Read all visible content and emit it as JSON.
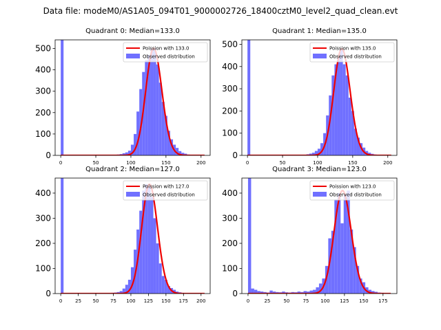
{
  "figure": {
    "title": "Data file: modeM0/AS1A05_094T01_9000002726_18400cztM0_level2_quad_clean.evt"
  },
  "colors": {
    "hist": "#7070ff",
    "fit": "#ee0000",
    "axis": "#000000"
  },
  "chart_data": [
    {
      "type": "bar",
      "title": "Quadrant 0: Median=133.0",
      "xlim": [
        -8,
        213
      ],
      "ylim": [
        0,
        540
      ],
      "xticks": [
        0,
        50,
        100,
        150,
        200
      ],
      "yticks": [
        0,
        100,
        200,
        300,
        400,
        500
      ],
      "bin_width": 4,
      "bins": [
        [
          0,
          540
        ],
        [
          72,
          2
        ],
        [
          76,
          3
        ],
        [
          80,
          4
        ],
        [
          84,
          6
        ],
        [
          88,
          10
        ],
        [
          92,
          14
        ],
        [
          96,
          22
        ],
        [
          100,
          50
        ],
        [
          104,
          100
        ],
        [
          108,
          205
        ],
        [
          112,
          310
        ],
        [
          116,
          390
        ],
        [
          120,
          445
        ],
        [
          124,
          470
        ],
        [
          128,
          500
        ],
        [
          132,
          500
        ],
        [
          136,
          425
        ],
        [
          140,
          340
        ],
        [
          144,
          250
        ],
        [
          148,
          185
        ],
        [
          152,
          115
        ],
        [
          156,
          75
        ],
        [
          160,
          50
        ],
        [
          164,
          35
        ],
        [
          168,
          20
        ],
        [
          172,
          12
        ],
        [
          176,
          8
        ],
        [
          180,
          4
        ],
        [
          184,
          3
        ],
        [
          188,
          2
        ]
      ],
      "fit_mean": 133.0,
      "legend": [
        "Poission with 133.0",
        "Observed distribution"
      ]
    },
    {
      "type": "bar",
      "title": "Quadrant 1: Median=135.0",
      "xlim": [
        -8,
        213
      ],
      "ylim": [
        0,
        520
      ],
      "xticks": [
        0,
        50,
        100,
        150,
        200
      ],
      "yticks": [
        0,
        100,
        200,
        300,
        400,
        500
      ],
      "bin_width": 4,
      "bins": [
        [
          0,
          520
        ],
        [
          80,
          3
        ],
        [
          84,
          5
        ],
        [
          88,
          8
        ],
        [
          92,
          12
        ],
        [
          96,
          20
        ],
        [
          100,
          30
        ],
        [
          104,
          55
        ],
        [
          108,
          100
        ],
        [
          112,
          180
        ],
        [
          116,
          270
        ],
        [
          120,
          360
        ],
        [
          124,
          410
        ],
        [
          128,
          440
        ],
        [
          132,
          480
        ],
        [
          136,
          410
        ],
        [
          140,
          360
        ],
        [
          144,
          260
        ],
        [
          148,
          200
        ],
        [
          152,
          120
        ],
        [
          156,
          80
        ],
        [
          160,
          55
        ],
        [
          164,
          35
        ],
        [
          168,
          20
        ],
        [
          172,
          12
        ],
        [
          176,
          7
        ],
        [
          180,
          4
        ]
      ],
      "fit_mean": 135.0,
      "legend": [
        "Poission with 135.0",
        "Observed distribution"
      ]
    },
    {
      "type": "bar",
      "title": "Quadrant 2: Median=127.0",
      "xlim": [
        -8,
        213
      ],
      "ylim": [
        0,
        460
      ],
      "xticks": [
        0,
        25,
        50,
        75,
        100,
        125,
        150,
        175,
        200
      ],
      "yticks": [
        0,
        100,
        200,
        300,
        400
      ],
      "bin_width": 4,
      "bins": [
        [
          0,
          460
        ],
        [
          68,
          2
        ],
        [
          72,
          3
        ],
        [
          76,
          4
        ],
        [
          80,
          6
        ],
        [
          84,
          10
        ],
        [
          88,
          20
        ],
        [
          92,
          35
        ],
        [
          96,
          55
        ],
        [
          100,
          105
        ],
        [
          104,
          175
        ],
        [
          108,
          255
        ],
        [
          112,
          330
        ],
        [
          116,
          410
        ],
        [
          120,
          435
        ],
        [
          124,
          425
        ],
        [
          128,
          385
        ],
        [
          132,
          300
        ],
        [
          136,
          200
        ],
        [
          140,
          120
        ],
        [
          144,
          70
        ],
        [
          148,
          55
        ],
        [
          152,
          30
        ],
        [
          156,
          22
        ],
        [
          160,
          15
        ],
        [
          164,
          8
        ],
        [
          168,
          5
        ],
        [
          172,
          3
        ]
      ],
      "fit_mean": 127.0,
      "legend": [
        "Poission with 127.0",
        "Observed distribution"
      ]
    },
    {
      "type": "bar",
      "title": "Quadrant 3: Median=123.0",
      "xlim": [
        -8,
        193
      ],
      "ylim": [
        0,
        460
      ],
      "xticks": [
        0,
        25,
        50,
        75,
        100,
        125,
        150,
        175
      ],
      "yticks": [
        0,
        100,
        200,
        300,
        400
      ],
      "bin_width": 4,
      "bins": [
        [
          0,
          460
        ],
        [
          4,
          20
        ],
        [
          8,
          15
        ],
        [
          12,
          10
        ],
        [
          16,
          8
        ],
        [
          20,
          6
        ],
        [
          24,
          4
        ],
        [
          28,
          12
        ],
        [
          32,
          8
        ],
        [
          36,
          6
        ],
        [
          40,
          5
        ],
        [
          44,
          8
        ],
        [
          48,
          5
        ],
        [
          52,
          4
        ],
        [
          56,
          6
        ],
        [
          60,
          5
        ],
        [
          64,
          8
        ],
        [
          68,
          6
        ],
        [
          72,
          10
        ],
        [
          76,
          8
        ],
        [
          80,
          12
        ],
        [
          84,
          15
        ],
        [
          88,
          25
        ],
        [
          92,
          40
        ],
        [
          96,
          60
        ],
        [
          100,
          110
        ],
        [
          104,
          220
        ],
        [
          108,
          250
        ],
        [
          112,
          375
        ],
        [
          116,
          400
        ],
        [
          120,
          280
        ],
        [
          124,
          395
        ],
        [
          128,
          410
        ],
        [
          132,
          255
        ],
        [
          136,
          185
        ],
        [
          140,
          110
        ],
        [
          144,
          60
        ],
        [
          148,
          45
        ],
        [
          152,
          25
        ],
        [
          156,
          15
        ],
        [
          160,
          10
        ],
        [
          164,
          7
        ],
        [
          168,
          4
        ],
        [
          172,
          3
        ],
        [
          176,
          2
        ]
      ],
      "fit_mean": 123.0,
      "legend": [
        "Poission with 123.0",
        "Observed distribution"
      ]
    }
  ]
}
